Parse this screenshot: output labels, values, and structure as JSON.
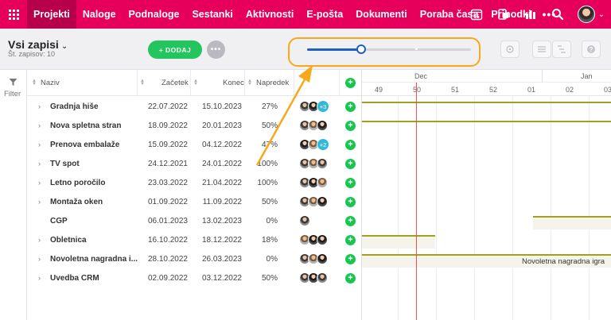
{
  "nav": {
    "items": [
      "Projekti",
      "Naloge",
      "Podnaloge",
      "Sestanki",
      "Aktivnosti",
      "E-pošta",
      "Dokumenti",
      "Poraba časa",
      "Prihodki"
    ],
    "more": "•••",
    "calendar_day": "15"
  },
  "toolbar": {
    "view_title": "Vsi zapisi",
    "view_count": "Št. zapisov: 10",
    "add_label": "+ DODAJ",
    "more_label": "•••",
    "zoom_level": 0.33
  },
  "filter": {
    "label": "Filter"
  },
  "columns": {
    "name": "Naziv",
    "start": "Začetek",
    "end": "Konec",
    "progress": "Napredek"
  },
  "rows": [
    {
      "name": "Gradnja hiše",
      "start": "22.07.2022",
      "end": "15.10.2023",
      "progress": "27%",
      "extra": "+3"
    },
    {
      "name": "Nova spletna stran",
      "start": "18.09.2022",
      "end": "20.01.2023",
      "progress": "50%",
      "extra": ""
    },
    {
      "name": "Prenova embalaže",
      "start": "15.09.2022",
      "end": "04.12.2022",
      "progress": "47%",
      "extra": "+2"
    },
    {
      "name": "TV spot",
      "start": "24.12.2021",
      "end": "24.01.2022",
      "progress": "100%",
      "extra": ""
    },
    {
      "name": "Letno poročilo",
      "start": "23.03.2022",
      "end": "21.04.2022",
      "progress": "100%",
      "extra": ""
    },
    {
      "name": "Montaža oken",
      "start": "01.09.2022",
      "end": "11.09.2022",
      "progress": "50%",
      "extra": ""
    },
    {
      "name": "CGP",
      "start": "06.01.2023",
      "end": "13.02.2023",
      "progress": "0%",
      "extra": ""
    },
    {
      "name": "Obletnica",
      "start": "16.10.2022",
      "end": "18.12.2022",
      "progress": "18%",
      "extra": ""
    },
    {
      "name": "Novoletna nagradna i...",
      "start": "28.10.2022",
      "end": "26.03.2023",
      "progress": "0%",
      "extra": ""
    },
    {
      "name": "Uvedba CRM",
      "start": "02.09.2022",
      "end": "03.12.2022",
      "progress": "50%",
      "extra": ""
    }
  ],
  "gantt": {
    "months": [
      "Dec",
      "Jan"
    ],
    "weeks": [
      "49",
      "50",
      "51",
      "52",
      "01",
      "02",
      "03"
    ],
    "bar_label": "Novoletna nagradna igra"
  },
  "colors": {
    "brand": "#e6005c",
    "accent": "#1f5fbf",
    "add": "#22c55e",
    "bar": "#a0a01e",
    "today": "#ff4d4d",
    "highlight": "#f7a81b"
  }
}
